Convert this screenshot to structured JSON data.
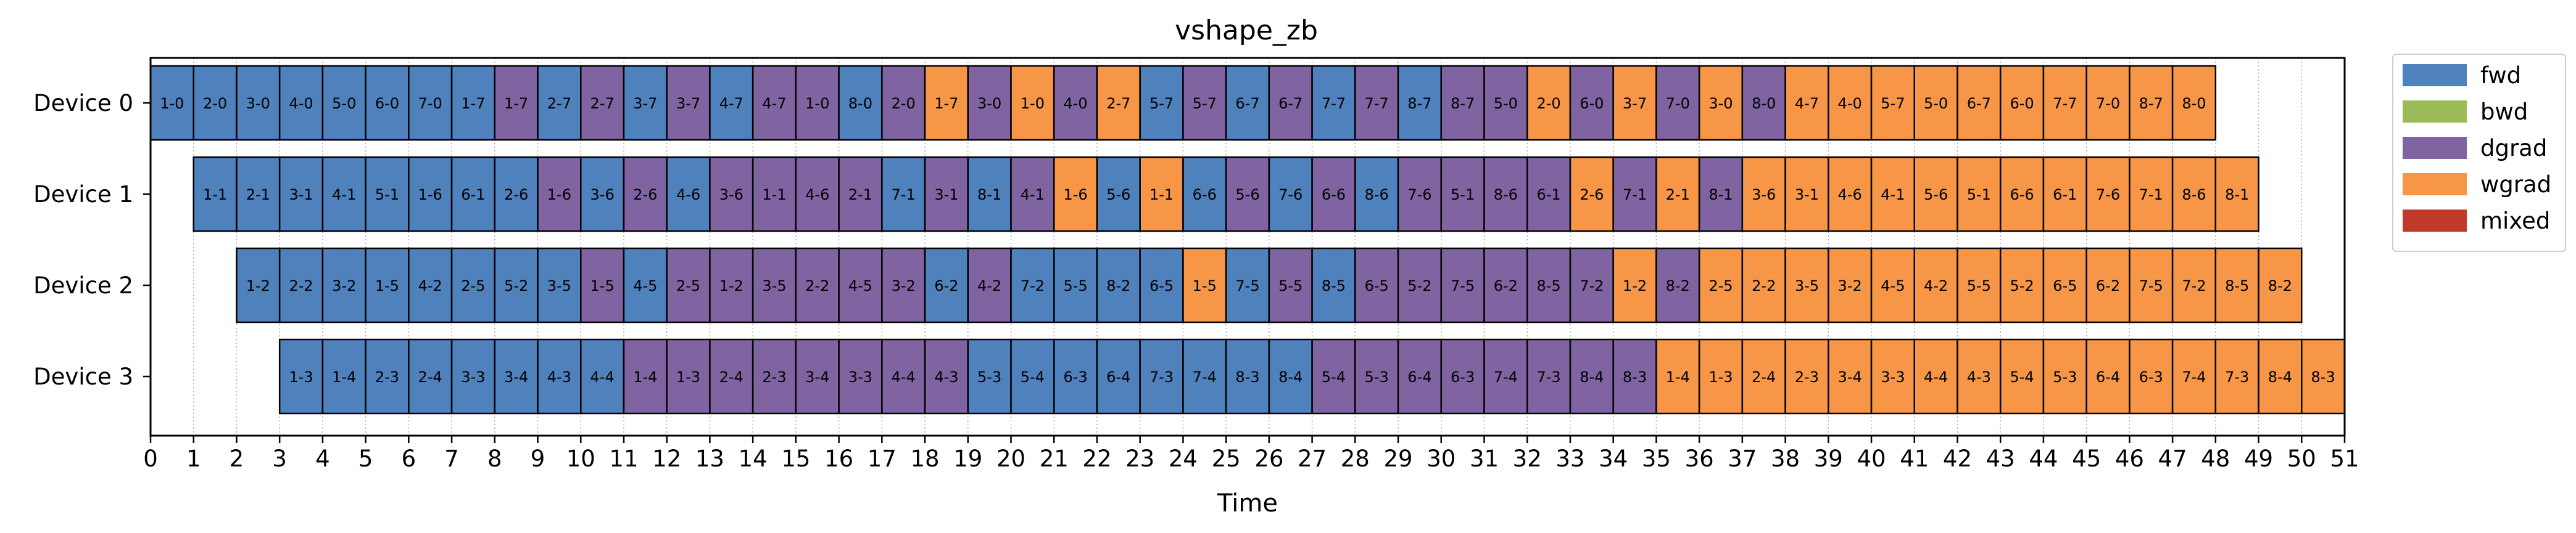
{
  "chart_data": {
    "type": "gantt",
    "title": "vshape_zb",
    "xlabel": "Time",
    "ylabel": "",
    "xlim": [
      0,
      51
    ],
    "xticks": [
      0,
      1,
      2,
      3,
      4,
      5,
      6,
      7,
      8,
      9,
      10,
      11,
      12,
      13,
      14,
      15,
      16,
      17,
      18,
      19,
      20,
      21,
      22,
      23,
      24,
      25,
      26,
      27,
      28,
      29,
      30,
      31,
      32,
      33,
      34,
      35,
      36,
      37,
      38,
      39,
      40,
      41,
      42,
      43,
      44,
      45,
      46,
      47,
      48,
      49,
      50,
      51
    ],
    "devices": [
      "Device 0",
      "Device 1",
      "Device 2",
      "Device 3"
    ],
    "grid": "vertical dotted lines at integer times",
    "legend_position": "outside upper right",
    "legend": [
      {
        "key": "F",
        "label": "fwd",
        "color": "#4f81bd"
      },
      {
        "key": "B",
        "label": "bwd",
        "color": "#9bbb59"
      },
      {
        "key": "D",
        "label": "dgrad",
        "color": "#8064a2"
      },
      {
        "key": "W",
        "label": "wgrad",
        "color": "#f79646"
      },
      {
        "key": "M",
        "label": "mixed",
        "color": "#c0392b"
      }
    ],
    "schedule": [
      {
        "device": "Device 0",
        "start": 0,
        "blocks": [
          [
            "1-0",
            "F"
          ],
          [
            "2-0",
            "F"
          ],
          [
            "3-0",
            "F"
          ],
          [
            "4-0",
            "F"
          ],
          [
            "5-0",
            "F"
          ],
          [
            "6-0",
            "F"
          ],
          [
            "7-0",
            "F"
          ],
          [
            "1-7",
            "F"
          ],
          [
            "1-7",
            "D"
          ],
          [
            "2-7",
            "F"
          ],
          [
            "2-7",
            "D"
          ],
          [
            "3-7",
            "F"
          ],
          [
            "3-7",
            "D"
          ],
          [
            "4-7",
            "F"
          ],
          [
            "4-7",
            "D"
          ],
          [
            "1-0",
            "D"
          ],
          [
            "8-0",
            "F"
          ],
          [
            "2-0",
            "D"
          ],
          [
            "1-7",
            "W"
          ],
          [
            "3-0",
            "D"
          ],
          [
            "1-0",
            "W"
          ],
          [
            "4-0",
            "D"
          ],
          [
            "2-7",
            "W"
          ],
          [
            "5-7",
            "F"
          ],
          [
            "5-7",
            "D"
          ],
          [
            "6-7",
            "F"
          ],
          [
            "6-7",
            "D"
          ],
          [
            "7-7",
            "F"
          ],
          [
            "7-7",
            "D"
          ],
          [
            "8-7",
            "F"
          ],
          [
            "8-7",
            "D"
          ],
          [
            "5-0",
            "D"
          ],
          [
            "2-0",
            "W"
          ],
          [
            "6-0",
            "D"
          ],
          [
            "3-7",
            "W"
          ],
          [
            "7-0",
            "D"
          ],
          [
            "3-0",
            "W"
          ],
          [
            "8-0",
            "D"
          ],
          [
            "4-7",
            "W"
          ],
          [
            "4-0",
            "W"
          ],
          [
            "5-7",
            "W"
          ],
          [
            "5-0",
            "W"
          ],
          [
            "6-7",
            "W"
          ],
          [
            "6-0",
            "W"
          ],
          [
            "7-7",
            "W"
          ],
          [
            "7-0",
            "W"
          ],
          [
            "8-7",
            "W"
          ],
          [
            "8-0",
            "W"
          ]
        ]
      },
      {
        "device": "Device 1",
        "start": 1,
        "blocks": [
          [
            "1-1",
            "F"
          ],
          [
            "2-1",
            "F"
          ],
          [
            "3-1",
            "F"
          ],
          [
            "4-1",
            "F"
          ],
          [
            "5-1",
            "F"
          ],
          [
            "1-6",
            "F"
          ],
          [
            "6-1",
            "F"
          ],
          [
            "2-6",
            "F"
          ],
          [
            "1-6",
            "D"
          ],
          [
            "3-6",
            "F"
          ],
          [
            "2-6",
            "D"
          ],
          [
            "4-6",
            "F"
          ],
          [
            "3-6",
            "D"
          ],
          [
            "1-1",
            "D"
          ],
          [
            "4-6",
            "D"
          ],
          [
            "2-1",
            "D"
          ],
          [
            "7-1",
            "F"
          ],
          [
            "3-1",
            "D"
          ],
          [
            "8-1",
            "F"
          ],
          [
            "4-1",
            "D"
          ],
          [
            "1-6",
            "W"
          ],
          [
            "5-6",
            "F"
          ],
          [
            "1-1",
            "W"
          ],
          [
            "6-6",
            "F"
          ],
          [
            "5-6",
            "D"
          ],
          [
            "7-6",
            "F"
          ],
          [
            "6-6",
            "D"
          ],
          [
            "8-6",
            "F"
          ],
          [
            "7-6",
            "D"
          ],
          [
            "5-1",
            "D"
          ],
          [
            "8-6",
            "D"
          ],
          [
            "6-1",
            "D"
          ],
          [
            "2-6",
            "W"
          ],
          [
            "7-1",
            "D"
          ],
          [
            "2-1",
            "W"
          ],
          [
            "8-1",
            "D"
          ],
          [
            "3-6",
            "W"
          ],
          [
            "3-1",
            "W"
          ],
          [
            "4-6",
            "W"
          ],
          [
            "4-1",
            "W"
          ],
          [
            "5-6",
            "W"
          ],
          [
            "5-1",
            "W"
          ],
          [
            "6-6",
            "W"
          ],
          [
            "6-1",
            "W"
          ],
          [
            "7-6",
            "W"
          ],
          [
            "7-1",
            "W"
          ],
          [
            "8-6",
            "W"
          ],
          [
            "8-1",
            "W"
          ]
        ]
      },
      {
        "device": "Device 2",
        "start": 2,
        "blocks": [
          [
            "1-2",
            "F"
          ],
          [
            "2-2",
            "F"
          ],
          [
            "3-2",
            "F"
          ],
          [
            "1-5",
            "F"
          ],
          [
            "4-2",
            "F"
          ],
          [
            "2-5",
            "F"
          ],
          [
            "5-2",
            "F"
          ],
          [
            "3-5",
            "F"
          ],
          [
            "1-5",
            "D"
          ],
          [
            "4-5",
            "F"
          ],
          [
            "2-5",
            "D"
          ],
          [
            "1-2",
            "D"
          ],
          [
            "3-5",
            "D"
          ],
          [
            "2-2",
            "D"
          ],
          [
            "4-5",
            "D"
          ],
          [
            "3-2",
            "D"
          ],
          [
            "6-2",
            "F"
          ],
          [
            "4-2",
            "D"
          ],
          [
            "7-2",
            "F"
          ],
          [
            "5-5",
            "F"
          ],
          [
            "8-2",
            "F"
          ],
          [
            "6-5",
            "F"
          ],
          [
            "1-5",
            "W"
          ],
          [
            "7-5",
            "F"
          ],
          [
            "5-5",
            "D"
          ],
          [
            "8-5",
            "F"
          ],
          [
            "6-5",
            "D"
          ],
          [
            "5-2",
            "D"
          ],
          [
            "7-5",
            "D"
          ],
          [
            "6-2",
            "D"
          ],
          [
            "8-5",
            "D"
          ],
          [
            "7-2",
            "D"
          ],
          [
            "1-2",
            "W"
          ],
          [
            "8-2",
            "D"
          ],
          [
            "2-5",
            "W"
          ],
          [
            "2-2",
            "W"
          ],
          [
            "3-5",
            "W"
          ],
          [
            "3-2",
            "W"
          ],
          [
            "4-5",
            "W"
          ],
          [
            "4-2",
            "W"
          ],
          [
            "5-5",
            "W"
          ],
          [
            "5-2",
            "W"
          ],
          [
            "6-5",
            "W"
          ],
          [
            "6-2",
            "W"
          ],
          [
            "7-5",
            "W"
          ],
          [
            "7-2",
            "W"
          ],
          [
            "8-5",
            "W"
          ],
          [
            "8-2",
            "W"
          ]
        ]
      },
      {
        "device": "Device 3",
        "start": 3,
        "blocks": [
          [
            "1-3",
            "F"
          ],
          [
            "1-4",
            "F"
          ],
          [
            "2-3",
            "F"
          ],
          [
            "2-4",
            "F"
          ],
          [
            "3-3",
            "F"
          ],
          [
            "3-4",
            "F"
          ],
          [
            "4-3",
            "F"
          ],
          [
            "4-4",
            "F"
          ],
          [
            "1-4",
            "D"
          ],
          [
            "1-3",
            "D"
          ],
          [
            "2-4",
            "D"
          ],
          [
            "2-3",
            "D"
          ],
          [
            "3-4",
            "D"
          ],
          [
            "3-3",
            "D"
          ],
          [
            "4-4",
            "D"
          ],
          [
            "4-3",
            "D"
          ],
          [
            "5-3",
            "F"
          ],
          [
            "5-4",
            "F"
          ],
          [
            "6-3",
            "F"
          ],
          [
            "6-4",
            "F"
          ],
          [
            "7-3",
            "F"
          ],
          [
            "7-4",
            "F"
          ],
          [
            "8-3",
            "F"
          ],
          [
            "8-4",
            "F"
          ],
          [
            "5-4",
            "D"
          ],
          [
            "5-3",
            "D"
          ],
          [
            "6-4",
            "D"
          ],
          [
            "6-3",
            "D"
          ],
          [
            "7-4",
            "D"
          ],
          [
            "7-3",
            "D"
          ],
          [
            "8-4",
            "D"
          ],
          [
            "8-3",
            "D"
          ],
          [
            "1-4",
            "W"
          ],
          [
            "1-3",
            "W"
          ],
          [
            "2-4",
            "W"
          ],
          [
            "2-3",
            "W"
          ],
          [
            "3-4",
            "W"
          ],
          [
            "3-3",
            "W"
          ],
          [
            "4-4",
            "W"
          ],
          [
            "4-3",
            "W"
          ],
          [
            "5-4",
            "W"
          ],
          [
            "5-3",
            "W"
          ],
          [
            "6-4",
            "W"
          ],
          [
            "6-3",
            "W"
          ],
          [
            "7-4",
            "W"
          ],
          [
            "7-3",
            "W"
          ],
          [
            "8-4",
            "W"
          ],
          [
            "8-3",
            "W"
          ]
        ]
      }
    ]
  }
}
